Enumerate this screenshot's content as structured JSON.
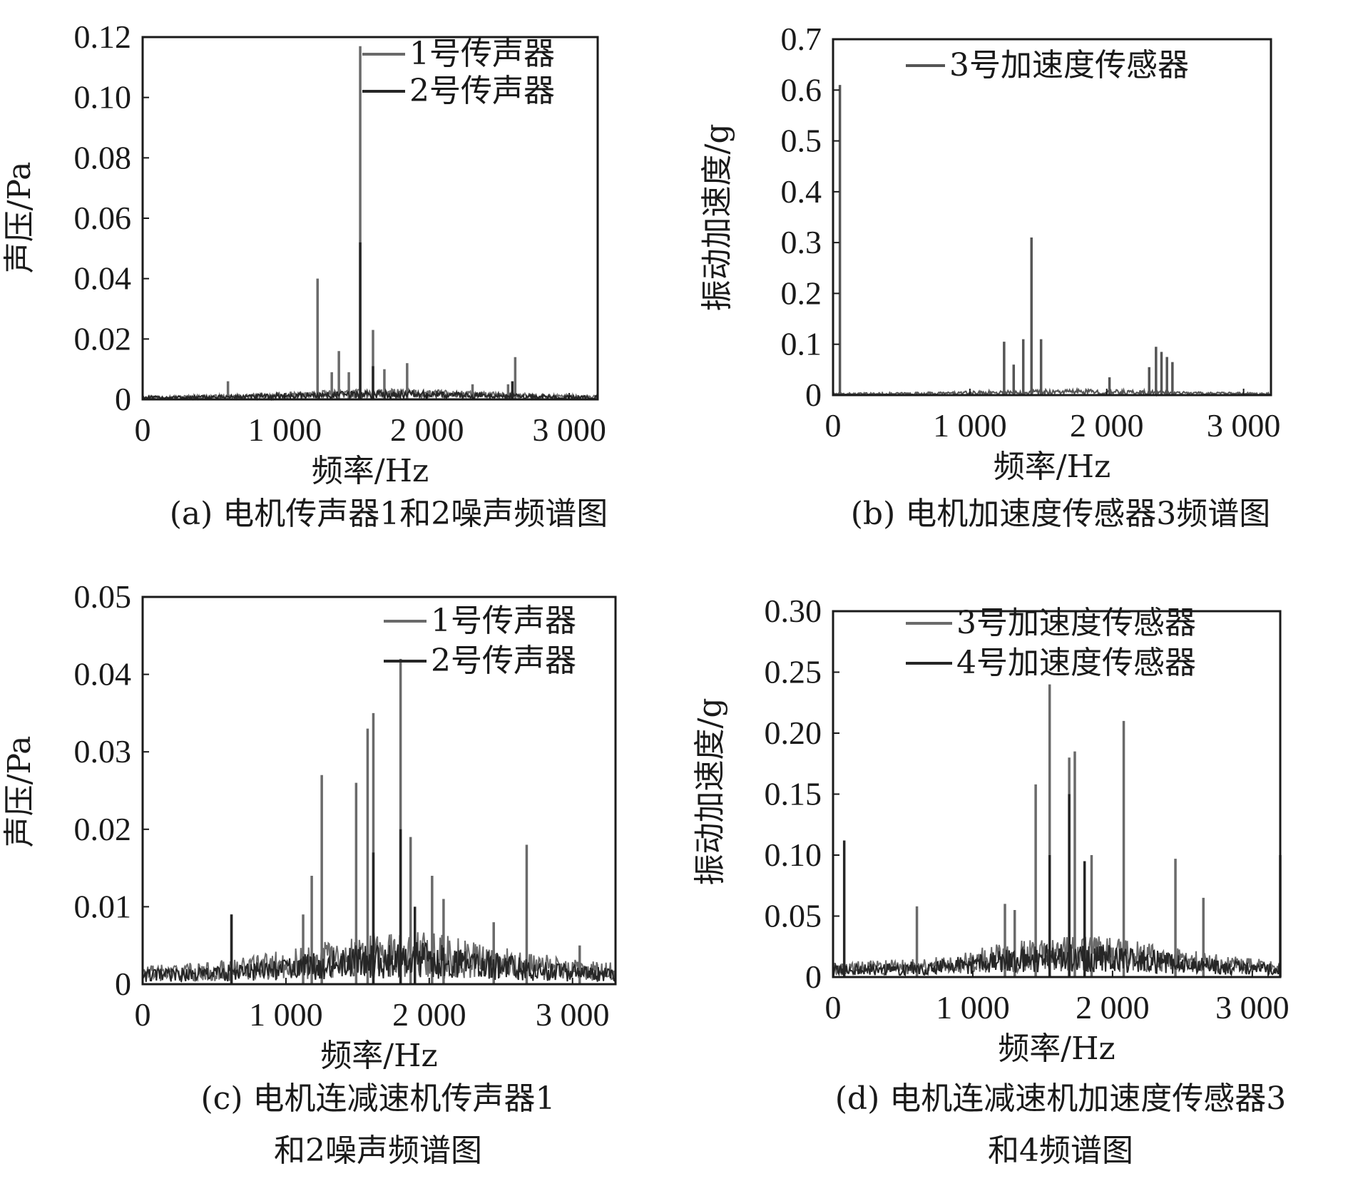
{
  "chart_data": [
    {
      "id": "a",
      "type": "line",
      "caption": [
        "(a) 电机传声器1和2噪声频谱图"
      ],
      "xlabel": "频率/Hz",
      "ylabel": "声压/Pa",
      "xlim": [
        0,
        3200
      ],
      "ylim": [
        0,
        0.12
      ],
      "xticks": [
        0,
        1000,
        2000,
        3000
      ],
      "xtick_labels": [
        "0",
        "1 000",
        "2 000",
        "3 000"
      ],
      "yticks": [
        0,
        0.02,
        0.04,
        0.06,
        0.08,
        0.1,
        0.12
      ],
      "ytick_labels": [
        "0",
        "0.02",
        "0.04",
        "0.06",
        "0.08",
        "0.10",
        "0.12"
      ],
      "legend": "top-right",
      "grid": false,
      "noise": [
        0.0015,
        0.003
      ],
      "series": [
        {
          "name": "1号传声器",
          "color": "#6a6a6a",
          "peaks": [
            [
              600,
              0.006
            ],
            [
              1230,
              0.04
            ],
            [
              1330,
              0.009
            ],
            [
              1380,
              0.016
            ],
            [
              1450,
              0.009
            ],
            [
              1530,
              0.117
            ],
            [
              1620,
              0.023
            ],
            [
              1700,
              0.01
            ],
            [
              1860,
              0.012
            ],
            [
              2320,
              0.005
            ],
            [
              2570,
              0.005
            ],
            [
              2620,
              0.014
            ]
          ]
        },
        {
          "name": "2号传声器",
          "color": "#262626",
          "peaks": [
            [
              1530,
              0.052
            ],
            [
              1620,
              0.011
            ],
            [
              2600,
              0.006
            ]
          ]
        }
      ]
    },
    {
      "id": "b",
      "type": "line",
      "caption": [
        "(b) 电机加速度传感器3频谱图"
      ],
      "xlabel": "频率/Hz",
      "ylabel": "振动加速度/g",
      "xlim": [
        0,
        3200
      ],
      "ylim": [
        0,
        0.7
      ],
      "xticks": [
        0,
        1000,
        2000,
        3000
      ],
      "xtick_labels": [
        "0",
        "1 000",
        "2 000",
        "3 000"
      ],
      "yticks": [
        0,
        0.1,
        0.2,
        0.3,
        0.4,
        0.5,
        0.6,
        0.7
      ],
      "ytick_labels": [
        "0",
        "0.1",
        "0.2",
        "0.3",
        "0.4",
        "0.5",
        "0.6",
        "0.7"
      ],
      "legend": "top-right",
      "grid": false,
      "noise": [
        0.005,
        0.01
      ],
      "series": [
        {
          "name": "3号加速度传感器",
          "color": "#555555",
          "peaks": [
            [
              50,
              0.61
            ],
            [
              1250,
              0.105
            ],
            [
              1320,
              0.06
            ],
            [
              1390,
              0.11
            ],
            [
              1450,
              0.31
            ],
            [
              1520,
              0.11
            ],
            [
              2020,
              0.035
            ],
            [
              2310,
              0.055
            ],
            [
              2360,
              0.095
            ],
            [
              2400,
              0.085
            ],
            [
              2440,
              0.075
            ],
            [
              2480,
              0.065
            ]
          ]
        }
      ]
    },
    {
      "id": "c",
      "type": "line",
      "caption": [
        "(c)  电机连减速机传声器1",
        "和2噪声频谱图"
      ],
      "xlabel": "频率/Hz",
      "ylabel": "声压/Pa",
      "xlim": [
        0,
        3300
      ],
      "ylim": [
        0,
        0.05
      ],
      "xticks": [
        0,
        1000,
        2000,
        3000
      ],
      "xtick_labels": [
        "0",
        "1 000",
        "2 000",
        "3 000"
      ],
      "yticks": [
        0,
        0.01,
        0.02,
        0.03,
        0.04,
        0.05
      ],
      "ytick_labels": [
        "0",
        "0.01",
        "0.02",
        "0.03",
        "0.04",
        "0.05"
      ],
      "legend": "top-right",
      "grid": false,
      "noise": [
        0.001,
        0.006
      ],
      "series": [
        {
          "name": "1号传声器",
          "color": "#6a6a6a",
          "peaks": [
            [
              620,
              0.009
            ],
            [
              1120,
              0.009
            ],
            [
              1180,
              0.014
            ],
            [
              1250,
              0.027
            ],
            [
              1490,
              0.026
            ],
            [
              1570,
              0.033
            ],
            [
              1610,
              0.035
            ],
            [
              1800,
              0.042
            ],
            [
              1870,
              0.019
            ],
            [
              2020,
              0.014
            ],
            [
              2100,
              0.011
            ],
            [
              2450,
              0.008
            ],
            [
              2680,
              0.018
            ],
            [
              3050,
              0.005
            ]
          ]
        },
        {
          "name": "2号传声器",
          "color": "#262626",
          "peaks": [
            [
              620,
              0.009
            ],
            [
              1610,
              0.017
            ],
            [
              1800,
              0.02
            ],
            [
              1900,
              0.01
            ]
          ]
        }
      ]
    },
    {
      "id": "d",
      "type": "line",
      "caption": [
        "(d) 电机连减速机加速度传感器3",
        "和4频谱图"
      ],
      "xlabel": "频率/Hz",
      "ylabel": "振动加速度/g",
      "xlim": [
        0,
        3200
      ],
      "ylim": [
        0,
        0.3
      ],
      "xticks": [
        0,
        1000,
        2000,
        3000
      ],
      "xtick_labels": [
        "0",
        "1 000",
        "2 000",
        "3 000"
      ],
      "yticks": [
        0,
        0.05,
        0.1,
        0.15,
        0.2,
        0.25,
        0.3
      ],
      "ytick_labels": [
        "0",
        "0.05",
        "0.10",
        "0.15",
        "0.20",
        "0.25",
        "0.30"
      ],
      "legend": "top-right",
      "grid": false,
      "noise": [
        0.006,
        0.03
      ],
      "series": [
        {
          "name": "3号加速度传感器",
          "color": "#6a6a6a",
          "peaks": [
            [
              600,
              0.058
            ],
            [
              1230,
              0.06
            ],
            [
              1300,
              0.055
            ],
            [
              1450,
              0.158
            ],
            [
              1550,
              0.24
            ],
            [
              1690,
              0.18
            ],
            [
              1730,
              0.185
            ],
            [
              1850,
              0.1
            ],
            [
              2080,
              0.21
            ],
            [
              2450,
              0.097
            ],
            [
              2650,
              0.065
            ]
          ]
        },
        {
          "name": "4号加速度传感器",
          "color": "#262626",
          "peaks": [
            [
              80,
              0.112
            ],
            [
              1550,
              0.1
            ],
            [
              1690,
              0.15
            ],
            [
              1800,
              0.095
            ],
            [
              3200,
              0.1
            ]
          ]
        }
      ]
    }
  ]
}
